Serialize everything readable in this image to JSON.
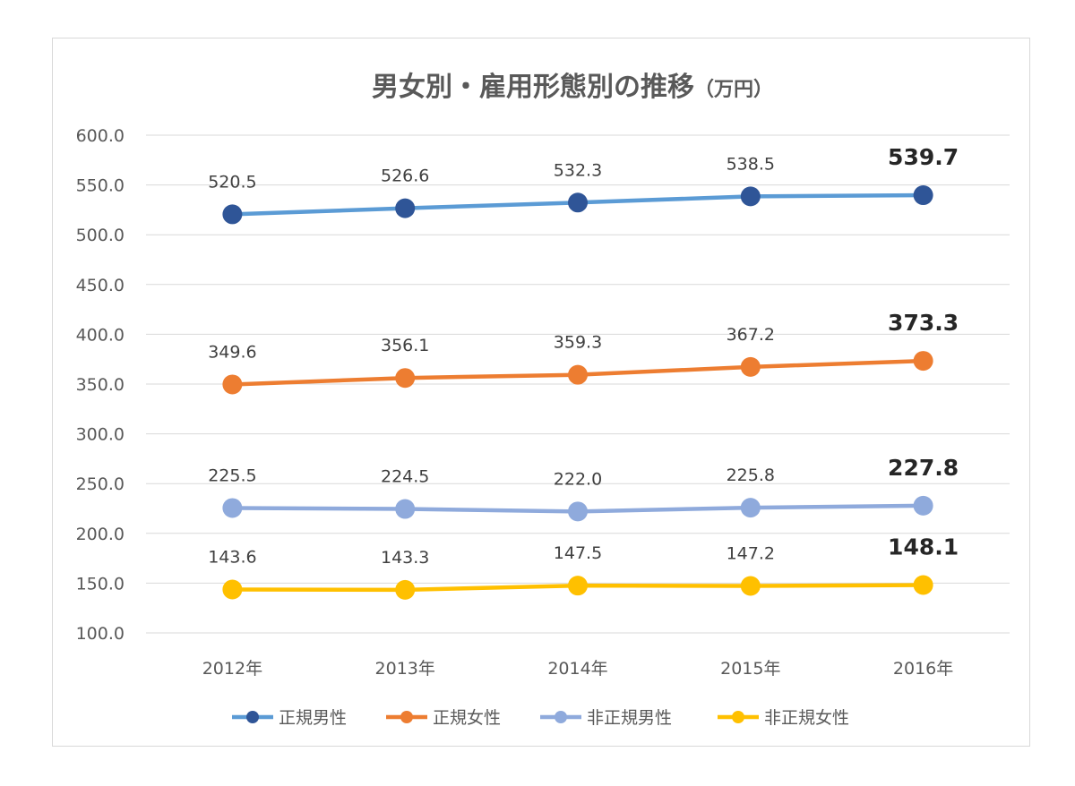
{
  "chart_data": {
    "type": "line",
    "title": "男女別・雇用形態別の推移",
    "title_unit": "（万円）",
    "categories": [
      "2012年",
      "2013年",
      "2014年",
      "2015年",
      "2016年"
    ],
    "ylim": [
      100,
      600
    ],
    "yticks": [
      "600.0",
      "550.0",
      "500.0",
      "450.0",
      "400.0",
      "350.0",
      "300.0",
      "250.0",
      "200.0",
      "150.0",
      "100.0"
    ],
    "grid": true,
    "legend_position": "bottom",
    "series": [
      {
        "name": "正規男性",
        "values": [
          520.5,
          526.6,
          532.3,
          538.5,
          539.7
        ],
        "labels": [
          "520.5",
          "526.6",
          "532.3",
          "538.5",
          "539.7"
        ],
        "line_color": "#5b9bd5",
        "marker_color": "#2f5597"
      },
      {
        "name": "正規女性",
        "values": [
          349.6,
          356.1,
          359.3,
          367.2,
          373.3
        ],
        "labels": [
          "349.6",
          "356.1",
          "359.3",
          "367.2",
          "373.3"
        ],
        "line_color": "#ed7d31",
        "marker_color": "#ed7d31"
      },
      {
        "name": "非正規男性",
        "values": [
          225.5,
          224.5,
          222.0,
          225.8,
          227.8
        ],
        "labels": [
          "225.5",
          "224.5",
          "222.0",
          "225.8",
          "227.8"
        ],
        "line_color": "#8faadc",
        "marker_color": "#8faadc"
      },
      {
        "name": "非正規女性",
        "values": [
          143.6,
          143.3,
          147.5,
          147.2,
          148.1
        ],
        "labels": [
          "143.6",
          "143.3",
          "147.5",
          "147.2",
          "148.1"
        ],
        "line_color": "#ffc000",
        "marker_color": "#ffc000"
      }
    ]
  }
}
